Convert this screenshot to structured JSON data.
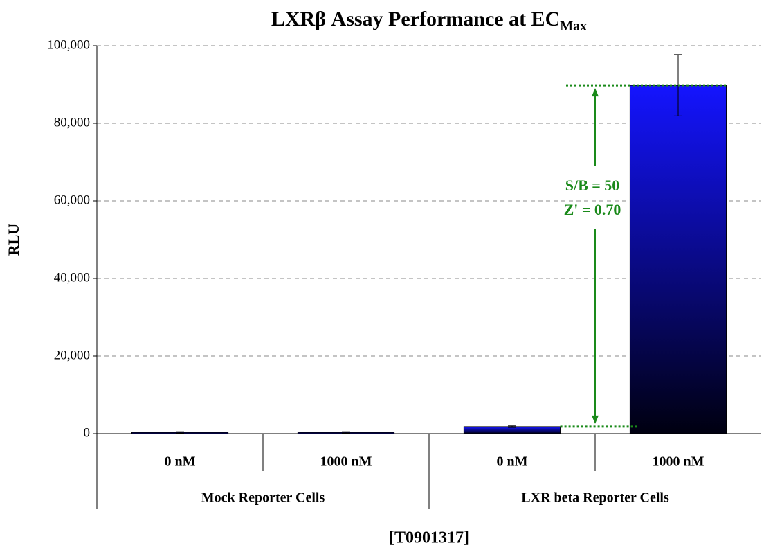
{
  "chart_data": {
    "type": "bar",
    "title": "LXRβ Assay Performance at EC",
    "title_subscript": "Max",
    "y_label": "RLU",
    "x_label": "[T0901317]",
    "categories": [
      "0 nM",
      "1000 nM",
      "0 nM",
      "1000 nM"
    ],
    "groups": [
      "Mock Reporter Cells",
      "LXR beta Reporter Cells"
    ],
    "values": [
      300,
      300,
      1800,
      89800
    ],
    "errors": [
      200,
      200,
      200,
      7900
    ],
    "color": "#0000ff",
    "ylim": [
      0,
      100000
    ],
    "yticks": [
      0,
      {
        "value": 20000,
        "label": "20,000"
      },
      {
        "value": 40000,
        "label": "40,000"
      },
      {
        "value": 60000,
        "label": "60,000"
      },
      {
        "value": 80000,
        "label": "80,000"
      },
      {
        "value": 100000,
        "label": "100,000"
      }
    ],
    "grid": true,
    "annotations": [
      "S/B = 50",
      "Z' = 0.70"
    ],
    "annotation_color": "#1a8a1a"
  }
}
